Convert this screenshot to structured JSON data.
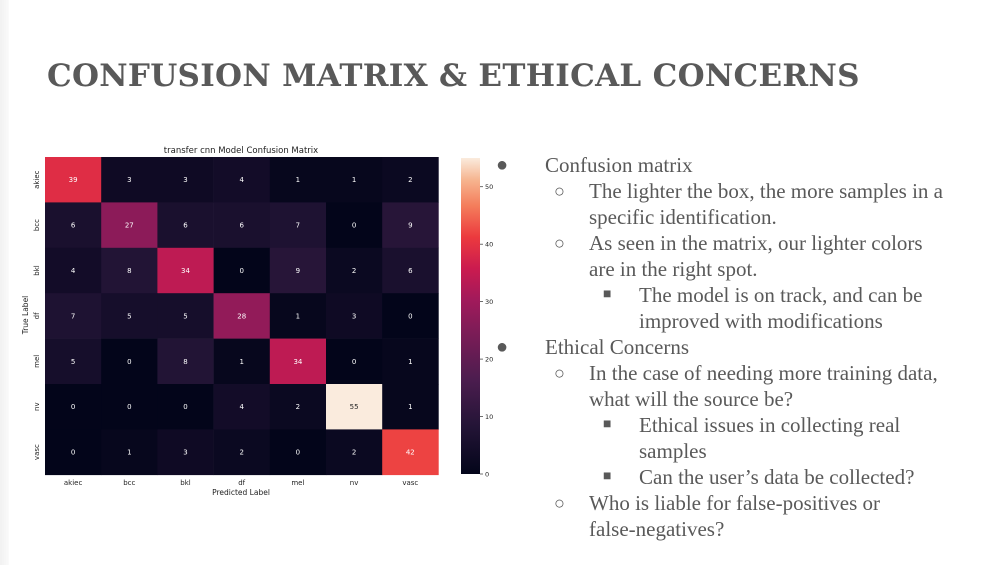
{
  "slide": {
    "title": "CONFUSION MATRIX & ETHICAL CONCERNS"
  },
  "bullets": [
    {
      "level": 1,
      "marker": "●",
      "lines": [
        "Confusion matrix"
      ]
    },
    {
      "level": 2,
      "marker": "○",
      "lines": [
        "The lighter the box, the more samples in a",
        "specific identification."
      ]
    },
    {
      "level": 2,
      "marker": "○",
      "lines": [
        "As seen in the matrix, our lighter colors",
        "are in the right spot."
      ]
    },
    {
      "level": 3,
      "marker": "■",
      "lines": [
        "The model is on track, and can be",
        "improved with modifications"
      ]
    },
    {
      "level": 1,
      "marker": "●",
      "lines": [
        "Ethical Concerns"
      ]
    },
    {
      "level": 2,
      "marker": "○",
      "lines": [
        "In the case of needing more training data,",
        "what will the source be?"
      ]
    },
    {
      "level": 3,
      "marker": "■",
      "lines": [
        "Ethical issues in collecting real",
        "samples"
      ]
    },
    {
      "level": 3,
      "marker": "■",
      "lines": [
        "Can the user’s data be collected?"
      ]
    },
    {
      "level": 2,
      "marker": "○",
      "lines": [
        "Who is liable for false-positives or",
        "false-negatives?"
      ]
    }
  ],
  "chart_data": {
    "type": "heatmap",
    "title": "transfer cnn Model Confusion Matrix",
    "xlabel": "Predicted Label",
    "ylabel": "True Label",
    "x_categories": [
      "akiec",
      "bcc",
      "bkl",
      "df",
      "mel",
      "nv",
      "vasc"
    ],
    "y_categories": [
      "akiec",
      "bcc",
      "bkl",
      "df",
      "mel",
      "nv",
      "vasc"
    ],
    "values": [
      [
        39,
        3,
        3,
        4,
        1,
        1,
        2
      ],
      [
        6,
        27,
        6,
        6,
        7,
        0,
        9
      ],
      [
        4,
        8,
        34,
        0,
        9,
        2,
        6
      ],
      [
        7,
        5,
        5,
        28,
        1,
        3,
        0
      ],
      [
        5,
        0,
        8,
        1,
        34,
        0,
        1
      ],
      [
        0,
        0,
        0,
        4,
        2,
        55,
        1
      ],
      [
        0,
        1,
        3,
        2,
        0,
        2,
        42
      ]
    ],
    "colorbar": {
      "range": [
        0,
        55
      ],
      "ticks": [
        "0",
        "10",
        "20",
        "30",
        "40",
        "50"
      ],
      "colormap": "rocket"
    }
  }
}
